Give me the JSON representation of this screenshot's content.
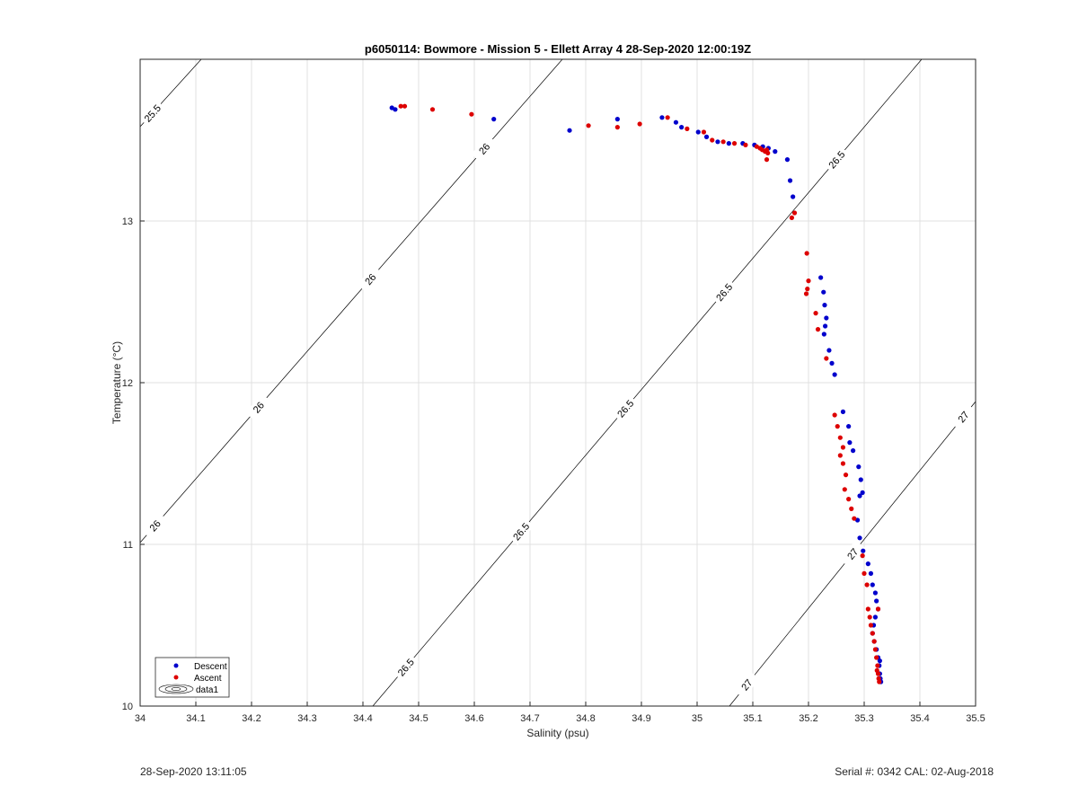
{
  "chart_data": {
    "type": "scatter",
    "title": "p6050114: Bowmore - Mission 5 - Ellett Array 4 28-Sep-2020 12:00:19Z",
    "xlabel": "Salinity (psu)",
    "ylabel": "Temperature (°C)",
    "xlim": [
      34,
      35.5
    ],
    "ylim": [
      10,
      14
    ],
    "x_ticks": [
      "34",
      "34.1",
      "34.2",
      "34.3",
      "34.4",
      "34.5",
      "34.6",
      "34.7",
      "34.8",
      "34.9",
      "35",
      "35.1",
      "35.2",
      "35.3",
      "35.4",
      "35.5"
    ],
    "y_ticks": [
      "10",
      "11",
      "12",
      "13"
    ],
    "grid": true,
    "legend": {
      "position": "bottom-left",
      "entries": [
        "Descent",
        "Ascent",
        "data1"
      ]
    },
    "colors": {
      "descent": "#0000cc",
      "ascent": "#dd0000",
      "contour": "#000000",
      "grid": "#e0e0e0"
    },
    "contours": [
      {
        "level": "25.5",
        "labels": [
          "25.5"
        ]
      },
      {
        "level": "26",
        "labels": [
          "26",
          "26",
          "26",
          "26"
        ]
      },
      {
        "level": "26.5",
        "labels": [
          "26.5",
          "26.5",
          "26.5",
          "26.5",
          "26.5"
        ]
      },
      {
        "level": "27",
        "labels": [
          "27",
          "27",
          "27"
        ]
      }
    ],
    "series": [
      {
        "name": "Descent",
        "x": [
          34.452,
          34.458,
          34.635,
          34.771,
          34.857,
          34.937,
          34.962,
          34.972,
          35.002,
          35.017,
          35.037,
          35.057,
          35.082,
          35.103,
          35.118,
          35.128,
          35.14,
          35.162,
          35.167,
          35.172,
          35.222,
          35.227,
          35.229,
          35.232,
          35.23,
          35.228,
          35.237,
          35.242,
          35.247,
          35.262,
          35.272,
          35.274,
          35.28,
          35.29,
          35.294,
          35.297,
          35.292,
          35.288,
          35.292,
          35.298,
          35.307,
          35.312,
          35.315,
          35.32,
          35.322,
          35.325,
          35.32,
          35.317,
          35.315,
          35.318,
          35.322,
          35.325,
          35.327,
          35.328,
          35.329,
          35.33,
          35.328
        ],
        "y": [
          13.7,
          13.69,
          13.63,
          13.56,
          13.63,
          13.64,
          13.61,
          13.58,
          13.55,
          13.52,
          13.49,
          13.48,
          13.48,
          13.47,
          13.46,
          13.45,
          13.43,
          13.38,
          13.25,
          13.15,
          12.65,
          12.56,
          12.48,
          12.4,
          12.35,
          12.3,
          12.2,
          12.12,
          12.05,
          11.82,
          11.73,
          11.63,
          11.58,
          11.48,
          11.4,
          11.32,
          11.3,
          11.15,
          11.04,
          10.96,
          10.88,
          10.82,
          10.75,
          10.7,
          10.65,
          10.6,
          10.55,
          10.5,
          10.45,
          10.4,
          10.35,
          10.3,
          10.25,
          10.2,
          10.17,
          10.15,
          10.28
        ]
      },
      {
        "name": "Ascent",
        "x": [
          34.468,
          34.475,
          34.525,
          34.595,
          34.805,
          34.857,
          34.897,
          34.947,
          34.982,
          35.012,
          35.027,
          35.047,
          35.067,
          35.087,
          35.107,
          35.113,
          35.117,
          35.122,
          35.125,
          35.127,
          35.125,
          35.17,
          35.175,
          35.197,
          35.2,
          35.198,
          35.196,
          35.213,
          35.217,
          35.232,
          35.247,
          35.252,
          35.257,
          35.262,
          35.257,
          35.262,
          35.267,
          35.265,
          35.272,
          35.277,
          35.282,
          35.297,
          35.3,
          35.305,
          35.307,
          35.31,
          35.312,
          35.315,
          35.318,
          35.32,
          35.322,
          35.324,
          35.325,
          35.326,
          35.327,
          35.323,
          35.325
        ],
        "y": [
          13.71,
          13.71,
          13.69,
          13.66,
          13.59,
          13.58,
          13.6,
          13.64,
          13.57,
          13.55,
          13.5,
          13.49,
          13.48,
          13.47,
          13.46,
          13.45,
          13.44,
          13.43,
          13.44,
          13.42,
          13.38,
          13.02,
          13.05,
          12.8,
          12.63,
          12.58,
          12.55,
          12.43,
          12.33,
          12.15,
          11.8,
          11.73,
          11.66,
          11.6,
          11.55,
          11.5,
          11.43,
          11.34,
          11.28,
          11.22,
          11.16,
          10.93,
          10.82,
          10.75,
          10.6,
          10.55,
          10.5,
          10.45,
          10.4,
          10.35,
          10.3,
          10.25,
          10.2,
          10.17,
          10.15,
          10.22,
          10.6
        ]
      }
    ]
  },
  "footer": {
    "left": "28-Sep-2020 13:11:05",
    "right": "Serial #: 0342  CAL: 02-Aug-2018"
  }
}
